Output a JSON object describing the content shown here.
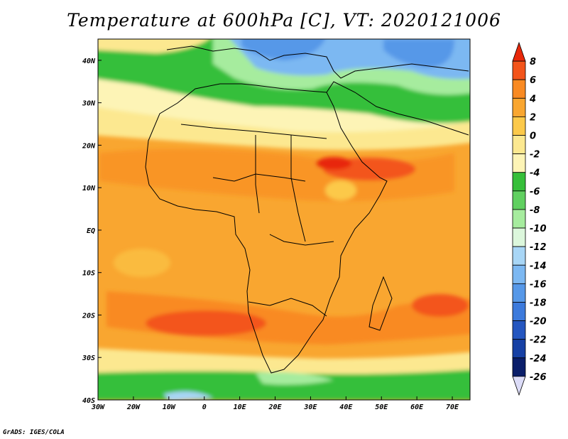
{
  "title": "Temperature at 600hPa [C], VT: 2020121006",
  "footer": "GrADS: IGES/COLA",
  "map": {
    "lon_range": [
      -30,
      75
    ],
    "lat_range": [
      -40,
      45
    ],
    "lon_ticks": [
      {
        "value": -30,
        "label": "30W"
      },
      {
        "value": -20,
        "label": "20W"
      },
      {
        "value": -10,
        "label": "10W"
      },
      {
        "value": 0,
        "label": "0"
      },
      {
        "value": 10,
        "label": "10E"
      },
      {
        "value": 20,
        "label": "20E"
      },
      {
        "value": 30,
        "label": "30E"
      },
      {
        "value": 40,
        "label": "40E"
      },
      {
        "value": 50,
        "label": "50E"
      },
      {
        "value": 60,
        "label": "60E"
      },
      {
        "value": 70,
        "label": "70E"
      }
    ],
    "lat_ticks": [
      {
        "value": 40,
        "label": "40N"
      },
      {
        "value": 30,
        "label": "30N"
      },
      {
        "value": 20,
        "label": "20N"
      },
      {
        "value": 10,
        "label": "10N"
      },
      {
        "value": 0,
        "label": "EQ"
      },
      {
        "value": -10,
        "label": "10S"
      },
      {
        "value": -20,
        "label": "20S"
      },
      {
        "value": -30,
        "label": "30S"
      },
      {
        "value": -40,
        "label": "40S"
      }
    ]
  },
  "colorbar": {
    "labels": [
      "8",
      "6",
      "4",
      "2",
      "0",
      "-2",
      "-4",
      "-6",
      "-8",
      "-10",
      "-12",
      "-14",
      "-16",
      "-18",
      "-20",
      "-22",
      "-24",
      "-26"
    ],
    "colors_top_to_bottom": [
      "#e8280a",
      "#f3541a",
      "#f98a22",
      "#f9a630",
      "#fcc94a",
      "#fce890",
      "#fdf4b6",
      "#36bf3a",
      "#60d060",
      "#a6ec9e",
      "#dcf7dc",
      "#a8d6f6",
      "#7cb8f2",
      "#5698e8",
      "#3c7adc",
      "#2456c0",
      "#1640a4",
      "#0a1e6a",
      "#dcdcf8"
    ]
  }
}
